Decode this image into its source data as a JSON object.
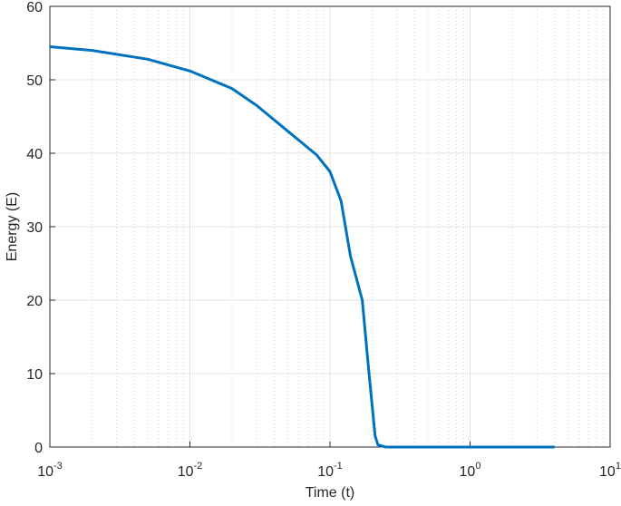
{
  "chart_data": {
    "type": "line",
    "x_label": "Time (t)",
    "y_label": "Energy (E)",
    "x_scale": "log",
    "grid": true,
    "minor_grid": true,
    "xlim": [
      0.001,
      10
    ],
    "ylim": [
      0,
      60
    ],
    "xticks": [
      {
        "value": 0.001,
        "label": "10-3"
      },
      {
        "value": 0.01,
        "label": "10-2"
      },
      {
        "value": 0.1,
        "label": "10-1"
      },
      {
        "value": 1,
        "label": "100"
      },
      {
        "value": 10,
        "label": "101"
      }
    ],
    "xminorticks": [
      0.002,
      0.003,
      0.004,
      0.005,
      0.006,
      0.007,
      0.008,
      0.009,
      0.02,
      0.03,
      0.04,
      0.05,
      0.06,
      0.07,
      0.08,
      0.09,
      0.2,
      0.3,
      0.4,
      0.5,
      0.6,
      0.7,
      0.8,
      0.9,
      2,
      3,
      4,
      5,
      6,
      7,
      8,
      9
    ],
    "yticks": [
      0,
      10,
      20,
      30,
      40,
      50,
      60
    ],
    "x": [
      0.001,
      0.002,
      0.005,
      0.01,
      0.02,
      0.03,
      0.05,
      0.08,
      0.1,
      0.12,
      0.14,
      0.17,
      0.19,
      0.21,
      0.22,
      0.25,
      4
    ],
    "series": [
      {
        "color": "#0072bd",
        "values": [
          54.5,
          54.0,
          52.8,
          51.2,
          48.8,
          46.5,
          43.0,
          39.8,
          37.5,
          33.5,
          26,
          20,
          10,
          1.5,
          0.3,
          0,
          0
        ]
      }
    ]
  }
}
